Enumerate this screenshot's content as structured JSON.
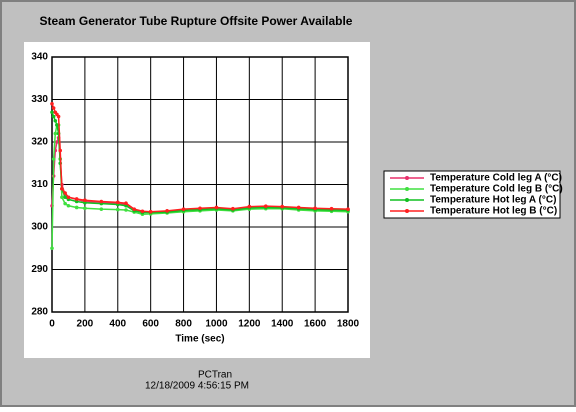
{
  "chart_data": {
    "type": "line",
    "title": "Steam Generator Tube Rupture Offsite Power Available",
    "x_label": "Time (sec)",
    "footer": [
      "PCTran",
      "12/18/2009 4:56:15 PM"
    ],
    "x": [
      0,
      10,
      20,
      30,
      40,
      50,
      60,
      80,
      100,
      150,
      200,
      300,
      400,
      450,
      500,
      550,
      600,
      700,
      800,
      900,
      1000,
      1100,
      1200,
      1300,
      1400,
      1500,
      1600,
      1700,
      1800
    ],
    "series": [
      {
        "name": "Temperature Cold leg A (°C)",
        "color": "#e8306c",
        "values": [
          305,
          312,
          318,
          320,
          321,
          316,
          310,
          307.5,
          307,
          306.5,
          306,
          305.8,
          305.5,
          305.3,
          304,
          303.6,
          303.5,
          303.6,
          304,
          304.2,
          304.4,
          304.1,
          304.6,
          304.7,
          304.6,
          304.4,
          304.3,
          304.2,
          304.1
        ]
      },
      {
        "name": "Temperature Cold leg B (°C)",
        "color": "#40e040",
        "values": [
          295,
          316,
          322,
          324,
          324,
          316,
          307,
          305.5,
          305,
          304.6,
          304.4,
          304.2,
          304.1,
          304,
          303.5,
          303,
          303.1,
          303.3,
          303.6,
          303.8,
          304,
          303.8,
          304.2,
          304.3,
          304.3,
          304,
          303.8,
          303.7,
          303.6
        ]
      },
      {
        "name": "Temperature Hot leg A (°C)",
        "color": "#10c020",
        "values": [
          327,
          326,
          325,
          324,
          322,
          315,
          309,
          307,
          306.5,
          306,
          305.7,
          305.5,
          305.3,
          305,
          303.8,
          303.4,
          303.4,
          303.5,
          303.9,
          304.1,
          304.3,
          304,
          304.5,
          304.6,
          304.5,
          304.3,
          304.1,
          304,
          303.9
        ]
      },
      {
        "name": "Temperature Hot leg B (°C)",
        "color": "#ff2020",
        "values": [
          329,
          328,
          327,
          326.5,
          326,
          318,
          309,
          308,
          307,
          306.6,
          306.3,
          306,
          305.8,
          305.6,
          304.2,
          303.7,
          303.6,
          303.8,
          304.2,
          304.4,
          304.6,
          304.3,
          304.8,
          304.9,
          304.8,
          304.6,
          304.4,
          304.3,
          304.2
        ]
      }
    ],
    "xlim": [
      0,
      1800
    ],
    "xticks": [
      0,
      200,
      400,
      600,
      800,
      1000,
      1200,
      1400,
      1600,
      1800
    ],
    "ylim": [
      280,
      340
    ],
    "yticks": [
      280,
      290,
      300,
      310,
      320,
      330,
      340
    ],
    "grid": true
  }
}
